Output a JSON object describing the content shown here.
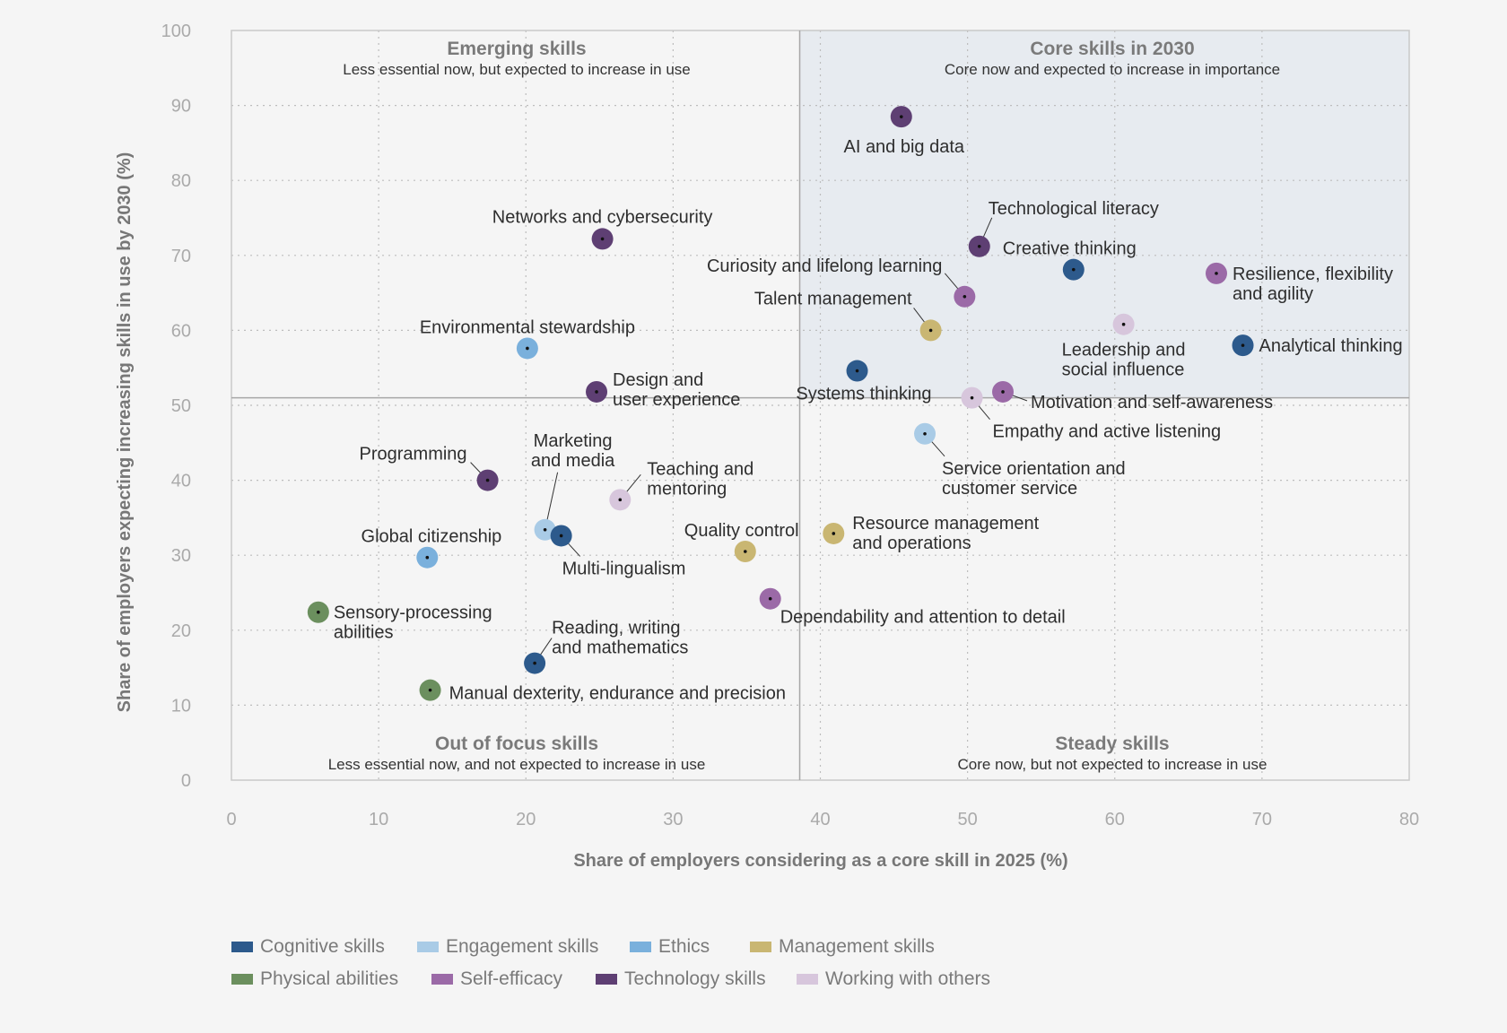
{
  "colors": {
    "cognitive": "#2d5a8c",
    "engagement": "#a9cbe6",
    "ethics": "#7ab0dc",
    "management": "#c9b672",
    "physical": "#6b8f5e",
    "selfefficacy": "#9b6aa7",
    "technology": "#5e3f73",
    "working": "#d7c6dc"
  },
  "chart_data": {
    "type": "scatter",
    "xlabel": "Share of employers considering as a core skill in 2025 (%)",
    "ylabel": "Share of employers expecting increasing skills in use by 2030 (%)",
    "xlim": [
      0,
      80
    ],
    "ylim": [
      0,
      100
    ],
    "xticks": [
      0,
      10,
      20,
      30,
      40,
      50,
      60,
      70,
      80
    ],
    "yticks": [
      0,
      10,
      20,
      30,
      40,
      50,
      60,
      70,
      80,
      90,
      100
    ],
    "grid": true,
    "divider_x": 38.6,
    "divider_y": 51,
    "quadrants": [
      {
        "title": "Emerging skills",
        "subtitle": "Less essential now, but expected to increase in use",
        "position": "top-left"
      },
      {
        "title": "Core skills in 2030",
        "subtitle": "Core now and expected to increase in importance",
        "position": "top-right"
      },
      {
        "title": "Out of focus skills",
        "subtitle": "Less essential now, and not expected to increase in use",
        "position": "bottom-left"
      },
      {
        "title": "Steady skills",
        "subtitle": "Core now, but not expected to increase in use",
        "position": "bottom-right"
      }
    ],
    "legend": [
      {
        "key": "cognitive",
        "label": "Cognitive skills"
      },
      {
        "key": "engagement",
        "label": "Engagement skills"
      },
      {
        "key": "ethics",
        "label": "Ethics"
      },
      {
        "key": "management",
        "label": "Management skills"
      },
      {
        "key": "physical",
        "label": "Physical abilities"
      },
      {
        "key": "selfefficacy",
        "label": "Self-efficacy"
      },
      {
        "key": "technology",
        "label": "Technology skills"
      },
      {
        "key": "working",
        "label": "Working with others"
      }
    ],
    "legend_position": "bottom-left",
    "points": [
      {
        "label": "AI and big data",
        "x": 45.5,
        "y": 88.5,
        "category": "technology"
      },
      {
        "label": "Networks and cybersecurity",
        "x": 25.2,
        "y": 72.2,
        "category": "technology"
      },
      {
        "label": "Technological literacy",
        "x": 50.8,
        "y": 71.2,
        "category": "technology"
      },
      {
        "label": "Creative thinking",
        "x": 57.2,
        "y": 68.1,
        "category": "cognitive"
      },
      {
        "label": "Resilience, flexibility and agility",
        "x": 66.9,
        "y": 67.6,
        "category": "selfefficacy"
      },
      {
        "label": "Curiosity and lifelong learning",
        "x": 49.8,
        "y": 64.5,
        "category": "selfefficacy"
      },
      {
        "label": "Leadership and social influence",
        "x": 60.6,
        "y": 60.8,
        "category": "working"
      },
      {
        "label": "Talent management",
        "x": 47.5,
        "y": 60.0,
        "category": "management"
      },
      {
        "label": "Analytical thinking",
        "x": 68.7,
        "y": 58.0,
        "category": "cognitive"
      },
      {
        "label": "Environmental stewardship",
        "x": 20.1,
        "y": 57.6,
        "category": "ethics"
      },
      {
        "label": "Systems thinking",
        "x": 42.5,
        "y": 54.6,
        "category": "cognitive"
      },
      {
        "label": "Design and user experience",
        "x": 24.8,
        "y": 51.8,
        "category": "technology"
      },
      {
        "label": "Motivation and self-awareness",
        "x": 52.4,
        "y": 51.8,
        "category": "selfefficacy"
      },
      {
        "label": "Empathy and active listening",
        "x": 50.3,
        "y": 51.0,
        "category": "working"
      },
      {
        "label": "Service orientation and customer service",
        "x": 47.1,
        "y": 46.2,
        "category": "engagement"
      },
      {
        "label": "Programming",
        "x": 17.4,
        "y": 40.0,
        "category": "technology"
      },
      {
        "label": "Teaching and mentoring",
        "x": 26.4,
        "y": 37.4,
        "category": "working"
      },
      {
        "label": "Marketing and media",
        "x": 21.3,
        "y": 33.4,
        "category": "engagement"
      },
      {
        "label": "Multi-lingualism",
        "x": 22.4,
        "y": 32.6,
        "category": "cognitive"
      },
      {
        "label": "Resource management and operations",
        "x": 40.9,
        "y": 32.9,
        "category": "management"
      },
      {
        "label": "Quality control",
        "x": 34.9,
        "y": 30.5,
        "category": "management"
      },
      {
        "label": "Global citizenship",
        "x": 13.3,
        "y": 29.7,
        "category": "ethics"
      },
      {
        "label": "Dependability and attention to detail",
        "x": 36.6,
        "y": 24.2,
        "category": "selfefficacy"
      },
      {
        "label": "Sensory-processing abilities",
        "x": 5.9,
        "y": 22.4,
        "category": "physical"
      },
      {
        "label": "Reading, writing and mathematics",
        "x": 20.6,
        "y": 15.6,
        "category": "cognitive"
      },
      {
        "label": "Manual dexterity, endurance and precision",
        "x": 13.5,
        "y": 12.0,
        "category": "physical"
      }
    ]
  }
}
